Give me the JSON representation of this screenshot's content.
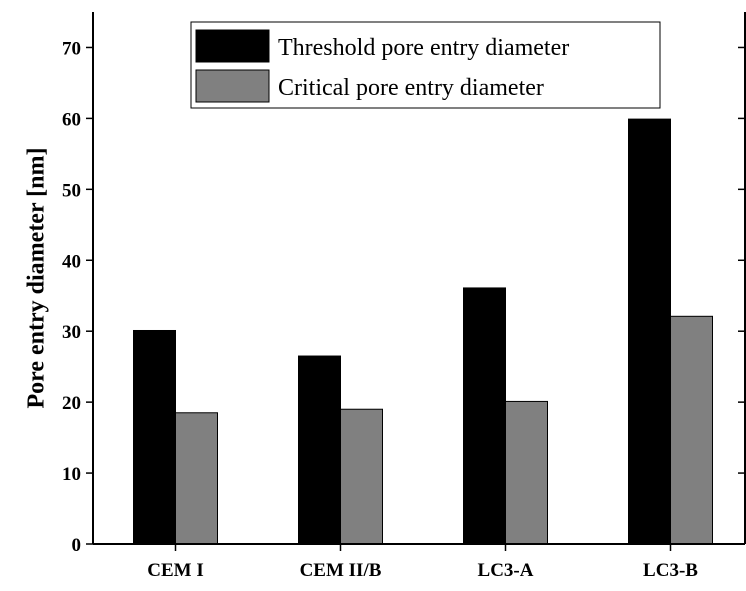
{
  "chart_data": {
    "type": "bar",
    "y_label": "Pore entry diameter [nm]",
    "categories": [
      "CEM I",
      "CEM II/B",
      "LC3-A",
      "LC3-B"
    ],
    "series": [
      {
        "name": "Threshold pore entry diameter",
        "color": "#000000",
        "values": [
          30.1,
          26.5,
          36.1,
          59.9
        ]
      },
      {
        "name": "Critical pore entry diameter",
        "color": "#808080",
        "values": [
          18.5,
          19.0,
          20.1,
          32.1
        ]
      }
    ],
    "ylim": [
      0,
      75
    ],
    "yticks": [
      0,
      10,
      20,
      30,
      40,
      50,
      60,
      70
    ],
    "grid": false
  }
}
